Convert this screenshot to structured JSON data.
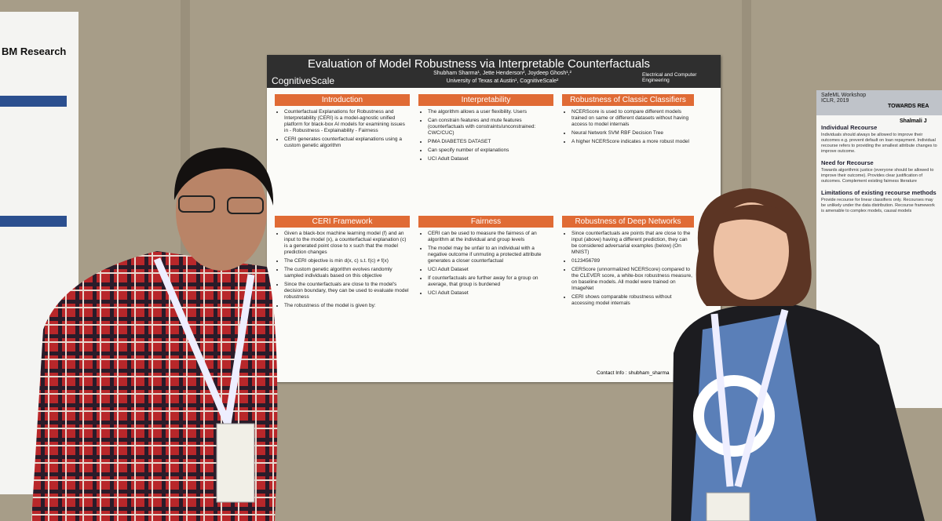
{
  "left_poster": {
    "brand": "BM Research"
  },
  "poster": {
    "title": "Evaluation of Model Robustness via Interpretable Counterfactuals",
    "logo": "CognitiveScale",
    "authors": "Shubham Sharma¹, Jette Henderson², Joydeep Ghosh¹,²",
    "affiliation": "University of Texas at Austin¹, CognitiveScale²",
    "university": "Electrical and Computer Engineering",
    "sections": [
      {
        "heading": "Introduction",
        "bullets": [
          "Counterfactual Explanations for Robustness and Interpretability (CERI) is a model-agnostic unified platform for black-box AI models for examining issues in - Robustness - Explainability - Fairness",
          "CERI generates counterfactual explanations using a custom genetic algorithm"
        ]
      },
      {
        "heading": "Interpretability",
        "bullets": [
          "The algorithm allows a user flexibility. Users",
          "Can constrain features and mute features (counterfactuals with constraints/unconstrained: CWC/CUC)",
          "PIMA DIABETES DATASET",
          "Can specify number of explanations",
          "UCI Adult Dataset"
        ]
      },
      {
        "heading": "Robustness of Classic Classifiers",
        "bullets": [
          "NCERScore is used to compare different models trained on same or different datasets without having access to model internals",
          "Neural Network    SVM RBF    Decision Tree",
          "A higher NCERScore indicates a more robust model"
        ]
      },
      {
        "heading": "CERI Framework",
        "bullets": [
          "Given a black-box machine learning model (f) and an input to the model (x), a counterfactual explanation (c) is a generated point close to x such that the model prediction changes",
          "The CERI objective is min d(x, c) s.t. f(c) ≠ f(x)",
          "The custom genetic algorithm evolves randomly sampled individuals based on this objective",
          "Since the counterfactuals are close to the model's decision boundary, they can be used to evaluate model robustness",
          "The robustness of the model is given by:"
        ]
      },
      {
        "heading": "Fairness",
        "bullets": [
          "CERI can be used to measure the fairness of an algorithm at the individual and group levels",
          "The model may be unfair to an individual with a negative outcome if unmuting a protected attribute generates a closer counterfactual",
          "UCI Adult Dataset",
          "If counterfactuals are further away for a group on average, that group is burdened",
          "UCI Adult Dataset"
        ]
      },
      {
        "heading": "Robustness of Deep Networks",
        "bullets": [
          "Since counterfactuals are points that are close to the input (above) having a different prediction, they can be considered adversarial examples (below) (On MNIST)",
          "0123456789",
          "CERScore (unnormalized NCERScore) compared to the CLEVER score, a white-box robustness measure, on baseline models. All model were trained on ImageNet",
          "CERI shows comparable robustness without accessing model internals"
        ]
      }
    ],
    "contact": "Contact Info : shubham_sharma"
  },
  "right_poster": {
    "workshop": "SafeML Workshop",
    "venue": "ICLR, 2019",
    "title": "TOWARDS REA",
    "author": "Shalmali J",
    "sections": [
      {
        "heading": "Individual Recourse",
        "text": "Individuals should always be allowed to improve their outcomes e.g. prevent default on loan repayment. Individual recourse refers to providing the smallest attribute changes to improve outcome."
      },
      {
        "heading": "Need for Recourse",
        "text": "Towards algorithmic justice (everyone should be allowed to improve their outcome). Provides clear justification of outcomes. Complement existing fairness literature"
      },
      {
        "heading": "Limitations of existing recourse methods",
        "text": "Provide recourse for linear classifiers only. Recourses may be unlikely under the data distribution. Recourse framework is amenable to complex models, causal models"
      }
    ]
  }
}
